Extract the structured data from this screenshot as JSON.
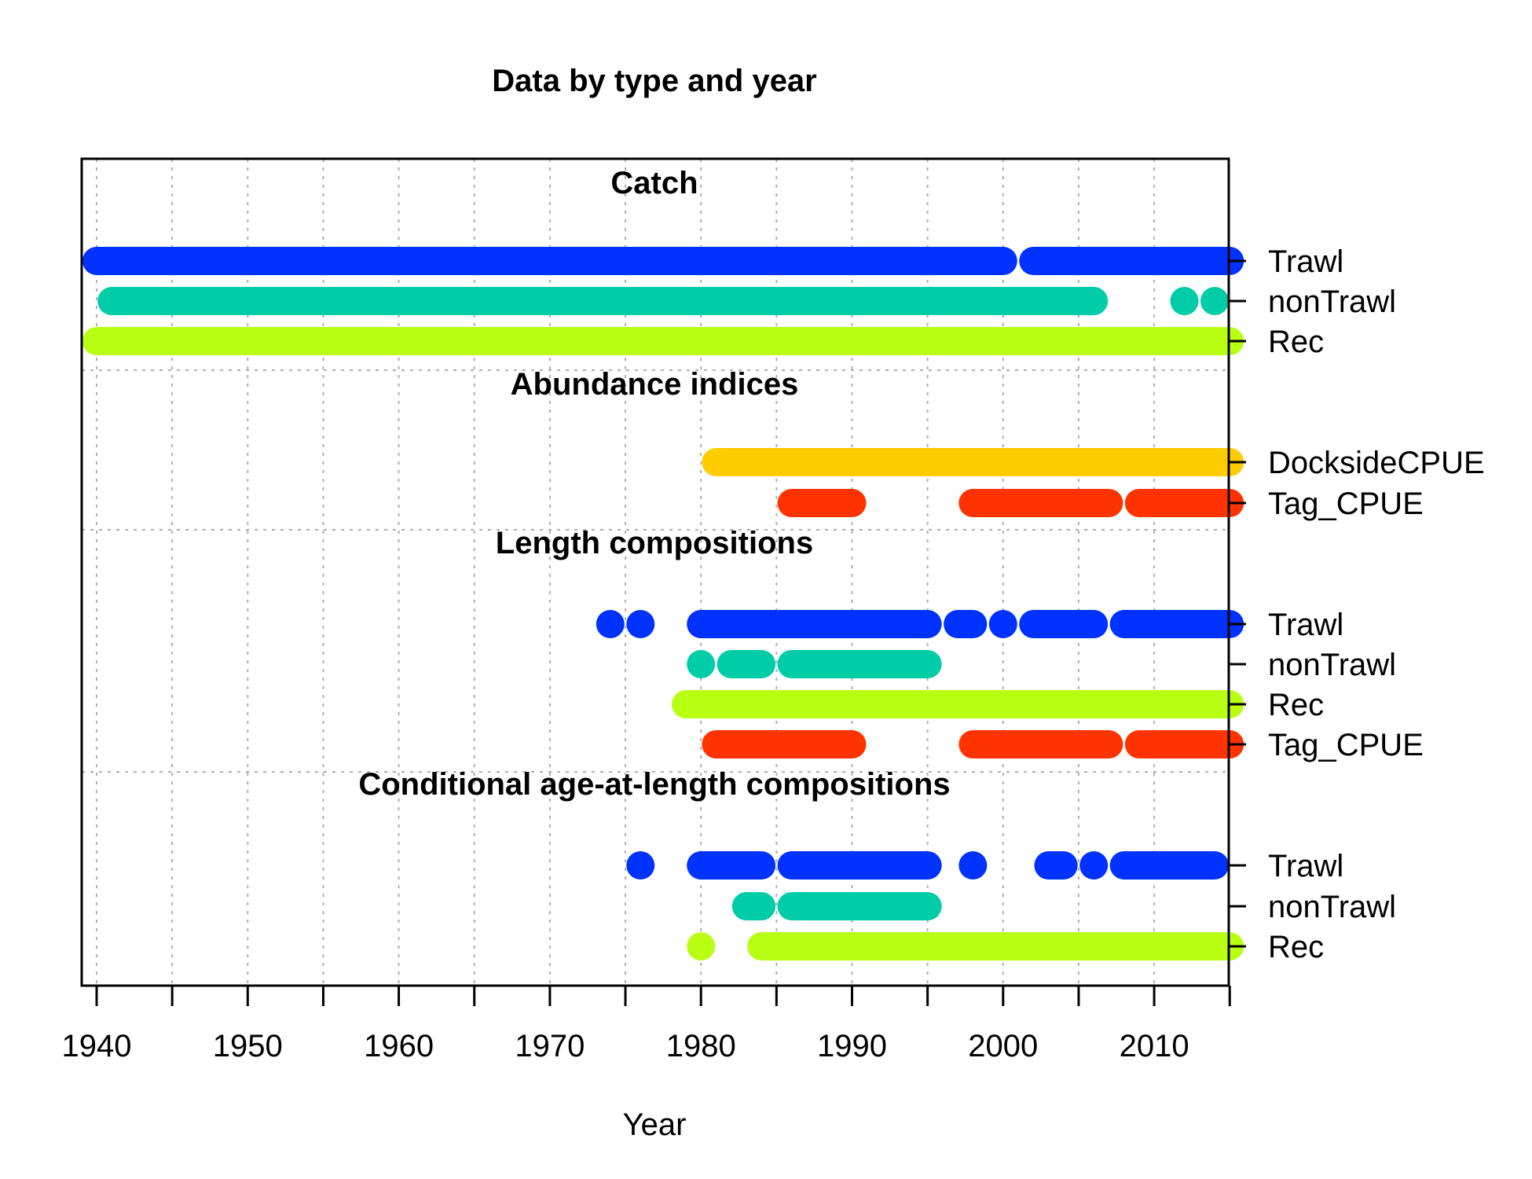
{
  "chart_data": {
    "type": "timeline",
    "title": "Data by type and year",
    "xlabel": "Year",
    "xlim": [
      1939.5,
      2015.5
    ],
    "x_ticks": [
      1940,
      1950,
      1960,
      1970,
      1980,
      1990,
      2000,
      2010
    ],
    "minor_ticks": [
      1945,
      1955,
      1965,
      1975,
      1985,
      1995,
      2005,
      2015
    ],
    "grid": true,
    "colors": {
      "Trawl": "#0032ff",
      "nonTrawl": "#00cca8",
      "Rec": "#b8ff14",
      "DocksideCPUE": "#ffcc00",
      "Tag_CPUE": "#ff3300"
    },
    "sections": [
      {
        "name": "Catch",
        "rows": [
          {
            "label": "Trawl",
            "segments": [
              [
                1940,
                2000
              ],
              [
                2002,
                2015
              ]
            ]
          },
          {
            "label": "nonTrawl",
            "segments": [
              [
                1941,
                2006
              ],
              [
                2012,
                2012
              ],
              [
                2014,
                2014
              ]
            ]
          },
          {
            "label": "Rec",
            "segments": [
              [
                1940,
                2015
              ]
            ]
          }
        ]
      },
      {
        "name": "Abundance indices",
        "rows": [
          {
            "label": "DocksideCPUE",
            "segments": [
              [
                1981,
                2015
              ]
            ]
          },
          {
            "label": "Tag_CPUE",
            "segments": [
              [
                1986,
                1990
              ],
              [
                1998,
                2007
              ],
              [
                2009,
                2015
              ]
            ]
          }
        ]
      },
      {
        "name": "Length compositions",
        "rows": [
          {
            "label": "Trawl",
            "segments": [
              [
                1974,
                1974
              ],
              [
                1976,
                1976
              ],
              [
                1980,
                1995
              ],
              [
                1997,
                1998
              ],
              [
                2000,
                2000
              ],
              [
                2002,
                2006
              ],
              [
                2008,
                2015
              ]
            ]
          },
          {
            "label": "nonTrawl",
            "segments": [
              [
                1980,
                1980
              ],
              [
                1982,
                1984
              ],
              [
                1986,
                1995
              ]
            ]
          },
          {
            "label": "Rec",
            "segments": [
              [
                1979,
                2015
              ]
            ]
          },
          {
            "label": "Tag_CPUE",
            "segments": [
              [
                1981,
                1990
              ],
              [
                1998,
                2007
              ],
              [
                2009,
                2015
              ]
            ]
          }
        ]
      },
      {
        "name": "Conditional age-at-length compositions",
        "rows": [
          {
            "label": "Trawl",
            "segments": [
              [
                1976,
                1976
              ],
              [
                1980,
                1984
              ],
              [
                1986,
                1995
              ],
              [
                1998,
                1998
              ],
              [
                2003,
                2004
              ],
              [
                2006,
                2006
              ],
              [
                2008,
                2014
              ]
            ]
          },
          {
            "label": "nonTrawl",
            "segments": [
              [
                1983,
                1984
              ],
              [
                1986,
                1995
              ]
            ]
          },
          {
            "label": "Rec",
            "segments": [
              [
                1980,
                1980
              ],
              [
                1984,
                2015
              ]
            ]
          }
        ]
      }
    ]
  }
}
